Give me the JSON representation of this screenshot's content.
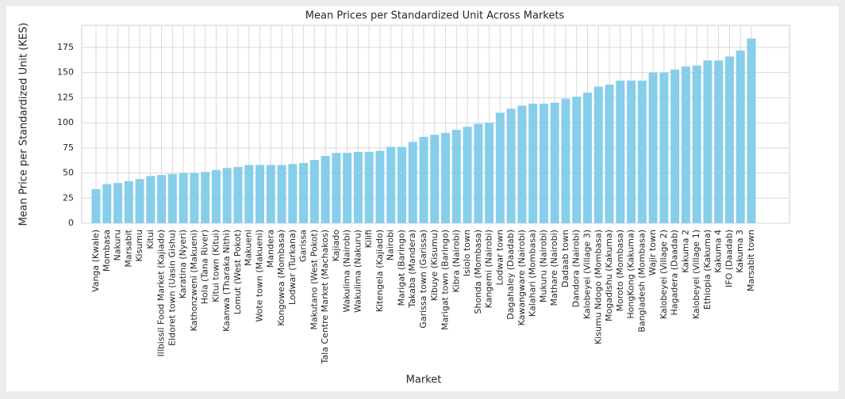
{
  "chart_data": {
    "type": "bar",
    "title": "Mean Prices per Standardized Unit Across Markets",
    "x_label": "Market",
    "y_label": "Mean Price per Standardized Unit (KES)",
    "categories": [
      "Vanga (Kwale)",
      "Mombasa",
      "Nakuru",
      "Marsabit",
      "Kisumu",
      "Kitui",
      "Illbissil Food Market (Kajiado)",
      "Eldoret town (Uasin Gishu)",
      "Karatina (Nyeri)",
      "Kathonzweni (Makueni)",
      "Hola (Tana River)",
      "Kitui town (Kitui)",
      "Kaanwa (Tharaka Nithi)",
      "Lomut (West Pokot)",
      "Makueni",
      "Wote town (Makueni)",
      "Mandera",
      "Kongowea (Mombasa)",
      "Lodwar (Turkana)",
      "Garissa",
      "Makutano (West Pokot)",
      "Tala Centre Market (Machakos)",
      "Kajiado",
      "Wakulima (Nairobi)",
      "Wakulima (Nakuru)",
      "Kilifi",
      "Kitengela (Kajiado)",
      "Nairobi",
      "Marigat (Baringo)",
      "Takaba (Mandera)",
      "Garissa town (Garissa)",
      "Kibuye (Kisumu)",
      "Marigat town (Baringo)",
      "Kibra (Nairobi)",
      "Isiolo town",
      "Shonda (Mombasa)",
      "Kangemi (Nairobi)",
      "Lodwar town",
      "Dagahaley (Daadab)",
      "Kawangware (Nairobi)",
      "Kalahari (Mombasa)",
      "Mukuru (Nairobi)",
      "Mathare (Nairobi)",
      "Dadaab town",
      "Dandora (Nairobi)",
      "Kalobeyei (Village 3)",
      "Kisumu Ndogo (Mombasa)",
      "Mogadishu (Kakuma)",
      "Moroto (Mombasa)",
      "HongKong (Kakuma)",
      "Bangladesh (Mombasa)",
      "Wajir town",
      "Kalobeyei (Village 2)",
      "Hagadera (Daadab)",
      "Kakuma 2",
      "Kalobeyei (Village 1)",
      "Ethiopia (Kakuma)",
      "Kakuma 4",
      "IFO (Daadab)",
      "Kakuma 3",
      "Marsabit town"
    ],
    "values": [
      34,
      39,
      40,
      42,
      44,
      47,
      48,
      49,
      50,
      50,
      51,
      53,
      55,
      56,
      58,
      58,
      58,
      58,
      59,
      60,
      63,
      67,
      70,
      70,
      71,
      71,
      72,
      76,
      76,
      81,
      86,
      88,
      90,
      93,
      96,
      99,
      100,
      110,
      114,
      117,
      119,
      119,
      120,
      124,
      126,
      130,
      136,
      138,
      142,
      142,
      142,
      150,
      150,
      153,
      156,
      157,
      162,
      162,
      166,
      172,
      184
    ],
    "color": "#87ceeb",
    "ylim": [
      0,
      197
    ],
    "yticks": [
      0,
      25,
      50,
      75,
      100,
      125,
      150,
      175
    ],
    "grid": true
  }
}
